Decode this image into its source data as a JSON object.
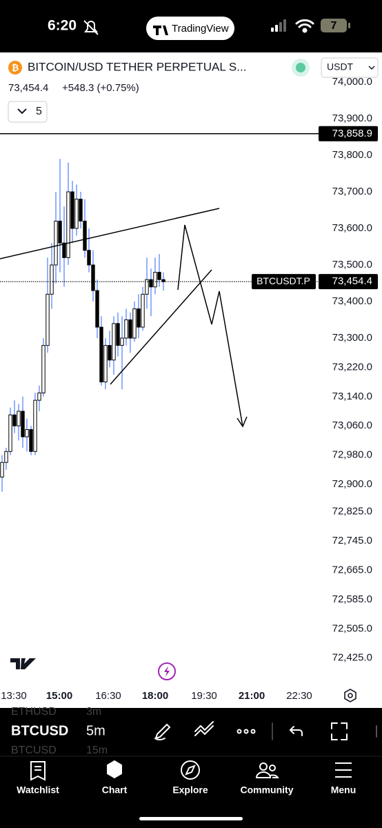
{
  "status_bar": {
    "time": "6:20",
    "app_pill": "TradingView",
    "battery": "7"
  },
  "header": {
    "symbol": "BITCOIN/USD TETHER PERPETUAL S...",
    "currency": "USDT",
    "price": "73,454.4",
    "change": "+548.3 (+0.75%)",
    "indicators_count": "5"
  },
  "chart": {
    "price_ticks": [
      {
        "value": 74000,
        "label": "74,000.0"
      },
      {
        "value": 73900,
        "label": "73,900.0"
      },
      {
        "value": 73800,
        "label": "73,800.0"
      },
      {
        "value": 73700,
        "label": "73,700.0"
      },
      {
        "value": 73600,
        "label": "73,600.0"
      },
      {
        "value": 73500,
        "label": "73,500.0"
      },
      {
        "value": 73400,
        "label": "73,400.0"
      },
      {
        "value": 73300,
        "label": "73,300.0"
      },
      {
        "value": 73220,
        "label": "73,220.0"
      },
      {
        "value": 73140,
        "label": "73,140.0"
      },
      {
        "value": 73060,
        "label": "73,060.0"
      },
      {
        "value": 72980,
        "label": "72,980.0"
      },
      {
        "value": 72900,
        "label": "72,900.0"
      },
      {
        "value": 72825,
        "label": "72,825.0"
      },
      {
        "value": 72745,
        "label": "72,745.0"
      },
      {
        "value": 72665,
        "label": "72,665.0"
      },
      {
        "value": 72585,
        "label": "72,585.0"
      },
      {
        "value": 72505,
        "label": "72,505.0"
      },
      {
        "value": 72425,
        "label": "72,425.0"
      }
    ],
    "time_labels": [
      "13:30",
      "15:00",
      "16:30",
      "18:00",
      "19:30",
      "21:00",
      "22:30"
    ],
    "horizontal_line": {
      "value": 73858.9,
      "label": "73,858.9"
    },
    "current": {
      "value": 73454.4,
      "symbol_label": "BTCUSDT.P",
      "label": "73,454.4"
    },
    "candles": {
      "open": [
        72920,
        72960,
        72990,
        73090,
        73060,
        73100,
        73030,
        73050,
        72990,
        73130,
        73150,
        73280,
        73420,
        73500,
        73620,
        73560,
        73520,
        73700,
        73600,
        73680,
        73620,
        73540,
        73500,
        73430,
        73330,
        73180,
        73280,
        73240,
        73340,
        73280,
        73300,
        73350,
        73300,
        73380,
        73330,
        73420,
        73460,
        73440,
        73480,
        73460
      ],
      "high": [
        72980,
        73000,
        73110,
        73130,
        73120,
        73140,
        73080,
        73060,
        73150,
        73170,
        73300,
        73520,
        73560,
        73700,
        73790,
        73660,
        73780,
        73730,
        73720,
        73700,
        73680,
        73600,
        73540,
        73460,
        73360,
        73300,
        73320,
        73360,
        73370,
        73360,
        73380,
        73370,
        73400,
        73420,
        73440,
        73520,
        73490,
        73520,
        73530,
        73480
      ],
      "low": [
        72880,
        72940,
        72980,
        73040,
        73020,
        73000,
        72990,
        72980,
        72980,
        73100,
        73140,
        73260,
        73380,
        73450,
        73480,
        73440,
        73500,
        73560,
        73580,
        73600,
        73520,
        73480,
        73400,
        73300,
        73170,
        73160,
        73220,
        73200,
        73250,
        73160,
        73280,
        73260,
        73290,
        73300,
        73320,
        73380,
        73360,
        73420,
        73440,
        73430
      ],
      "close": [
        72960,
        72990,
        73090,
        73060,
        73100,
        73030,
        73050,
        72990,
        73130,
        73150,
        73280,
        73420,
        73500,
        73620,
        73560,
        73520,
        73700,
        73600,
        73680,
        73620,
        73540,
        73500,
        73430,
        73330,
        73180,
        73280,
        73240,
        73340,
        73280,
        73300,
        73350,
        73300,
        73380,
        73330,
        73420,
        73460,
        73440,
        73480,
        73460,
        73454.4
      ]
    }
  },
  "toolbar": {
    "symbol": "BTCUSD",
    "interval": "5m",
    "ghost_above": {
      "symbol": "ETHUSD",
      "interval": "3m"
    },
    "ghost_below": {
      "symbol": "BTCUSD",
      "interval": "15m"
    }
  },
  "nav": [
    "Watchlist",
    "Chart",
    "Explore",
    "Community",
    "Menu"
  ]
}
